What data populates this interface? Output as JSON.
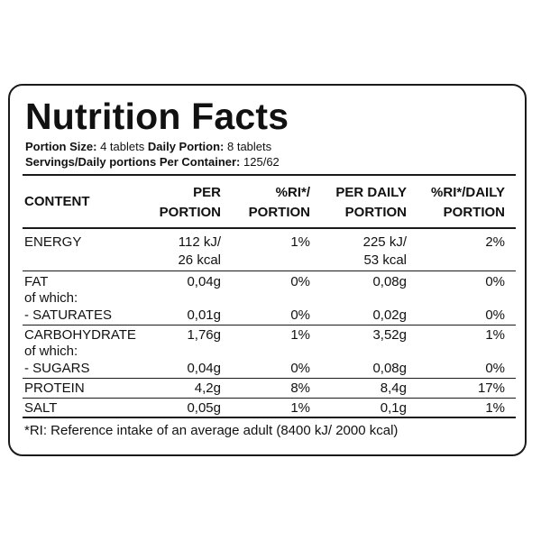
{
  "title": "Nutrition Facts",
  "portion": {
    "size_label": "Portion Size:",
    "size_value": "4 tablets",
    "daily_label": "Daily Portion:",
    "daily_value": "8 tablets",
    "servings_label": "Servings/Daily portions Per Container:",
    "servings_value": "125/62"
  },
  "headers": {
    "content": "CONTENT",
    "per_portion_1": "PER",
    "per_portion_2": "PORTION",
    "ri_1": "%RI*/",
    "ri_2": "PORTION",
    "per_daily_1": "PER DAILY",
    "per_daily_2": "PORTION",
    "ri_daily_1": "%RI*/DAILY",
    "ri_daily_2": "PORTION"
  },
  "rows": {
    "energy": {
      "name": "ENERGY",
      "per_portion_1": "112 kJ/",
      "per_portion_2": "26 kcal",
      "ri": "1%",
      "per_daily_1": "225 kJ/",
      "per_daily_2": "53 kcal",
      "ri_daily": "2%"
    },
    "fat": {
      "name": "FAT",
      "per_portion": "0,04g",
      "ri": "0%",
      "per_daily": "0,08g",
      "ri_daily": "0%"
    },
    "fat_of_which": "of which:",
    "saturates": {
      "name": "- SATURATES",
      "per_portion": "0,01g",
      "ri": "0%",
      "per_daily": "0,02g",
      "ri_daily": "0%"
    },
    "carbohydrate": {
      "name": "CARBOHYDRATE",
      "per_portion": "1,76g",
      "ri": "1%",
      "per_daily": "3,52g",
      "ri_daily": "1%"
    },
    "carb_of_which": "of which:",
    "sugars": {
      "name": "- SUGARS",
      "per_portion": "0,04g",
      "ri": "0%",
      "per_daily": "0,08g",
      "ri_daily": "0%"
    },
    "protein": {
      "name": "PROTEIN",
      "per_portion": "4,2g",
      "ri": "8%",
      "per_daily": "8,4g",
      "ri_daily": "17%"
    },
    "salt": {
      "name": "SALT",
      "per_portion": "0,05g",
      "ri": "1%",
      "per_daily": "0,1g",
      "ri_daily": "1%"
    }
  },
  "footnote": "*RI: Reference intake of an average adult (8400 kJ/ 2000 kcal)"
}
